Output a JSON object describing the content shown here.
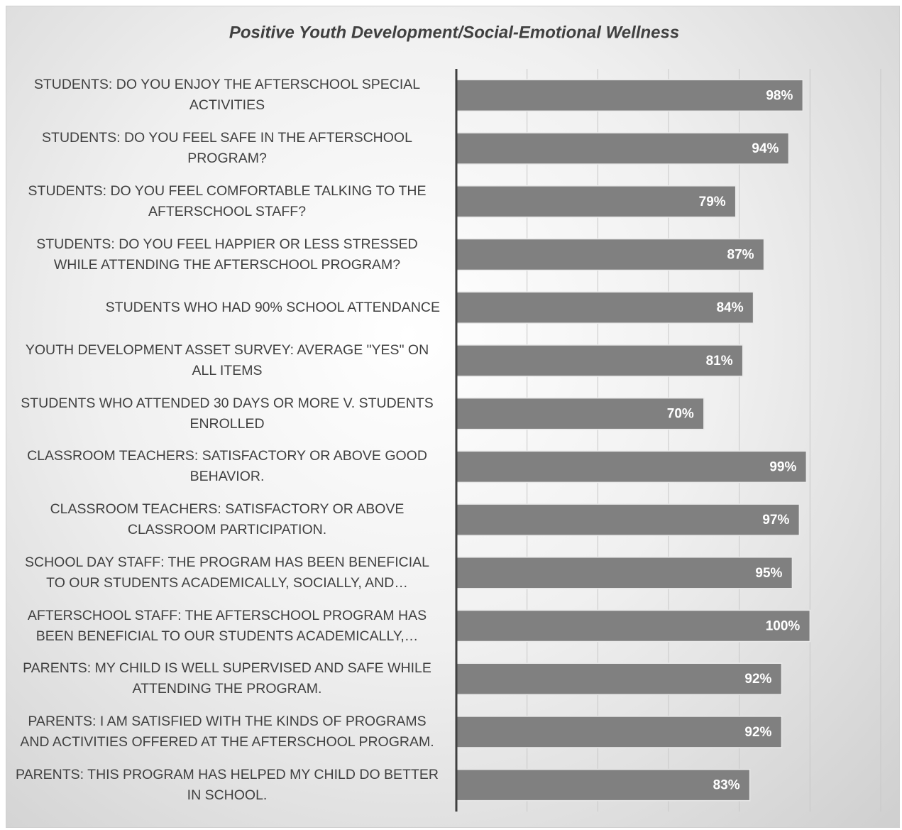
{
  "chart_data": {
    "type": "bar",
    "orientation": "horizontal",
    "title": "Positive Youth Development/Social-Emotional Wellness",
    "categories": [
      "STUDENTS: DO YOU ENJOY THE AFTERSCHOOL SPECIAL ACTIVITIES",
      "STUDENTS: DO YOU FEEL SAFE IN THE AFTERSCHOOL PROGRAM?",
      "STUDENTS: DO YOU FEEL COMFORTABLE TALKING TO THE AFTERSCHOOL STAFF?",
      "STUDENTS: DO YOU FEEL HAPPIER OR LESS STRESSED WHILE ATTENDING THE AFTERSCHOOL PROGRAM?",
      "STUDENTS WHO HAD 90% SCHOOL ATTENDANCE",
      "YOUTH DEVELOPMENT ASSET SURVEY: AVERAGE \"YES\" ON ALL ITEMS",
      "STUDENTS WHO ATTENDED 30 DAYS OR MORE V. STUDENTS ENROLLED",
      "CLASSROOM TEACHERS: SATISFACTORY OR ABOVE GOOD BEHAVIOR.",
      "CLASSROOM TEACHERS: SATISFACTORY OR ABOVE CLASSROOM PARTICIPATION.",
      "SCHOOL DAY STAFF: THE PROGRAM HAS BEEN BENEFICIAL TO OUR STUDENTS ACADEMICALLY, SOCIALLY, AND…",
      "AFTERSCHOOL STAFF: THE AFTERSCHOOL PROGRAM HAS BEEN BENEFICIAL TO OUR STUDENTS ACADEMICALLY,…",
      "PARENTS: MY CHILD IS WELL SUPERVISED AND SAFE WHILE ATTENDING THE PROGRAM.",
      "PARENTS: I AM SATISFIED WITH THE KINDS OF PROGRAMS AND ACTIVITIES OFFERED AT THE AFTERSCHOOL PROGRAM.",
      "PARENTS: THIS PROGRAM HAS HELPED MY CHILD DO BETTER IN SCHOOL."
    ],
    "values": [
      98,
      94,
      79,
      87,
      84,
      81,
      70,
      99,
      97,
      95,
      100,
      92,
      92,
      83
    ],
    "value_labels": [
      "98%",
      "94%",
      "79%",
      "87%",
      "84%",
      "81%",
      "70%",
      "99%",
      "97%",
      "95%",
      "100%",
      "92%",
      "92%",
      "83%"
    ],
    "color": "#808080",
    "xlim": [
      0,
      120
    ],
    "xticks": [
      0,
      20,
      40,
      60,
      80,
      100,
      120
    ],
    "grid": true
  }
}
